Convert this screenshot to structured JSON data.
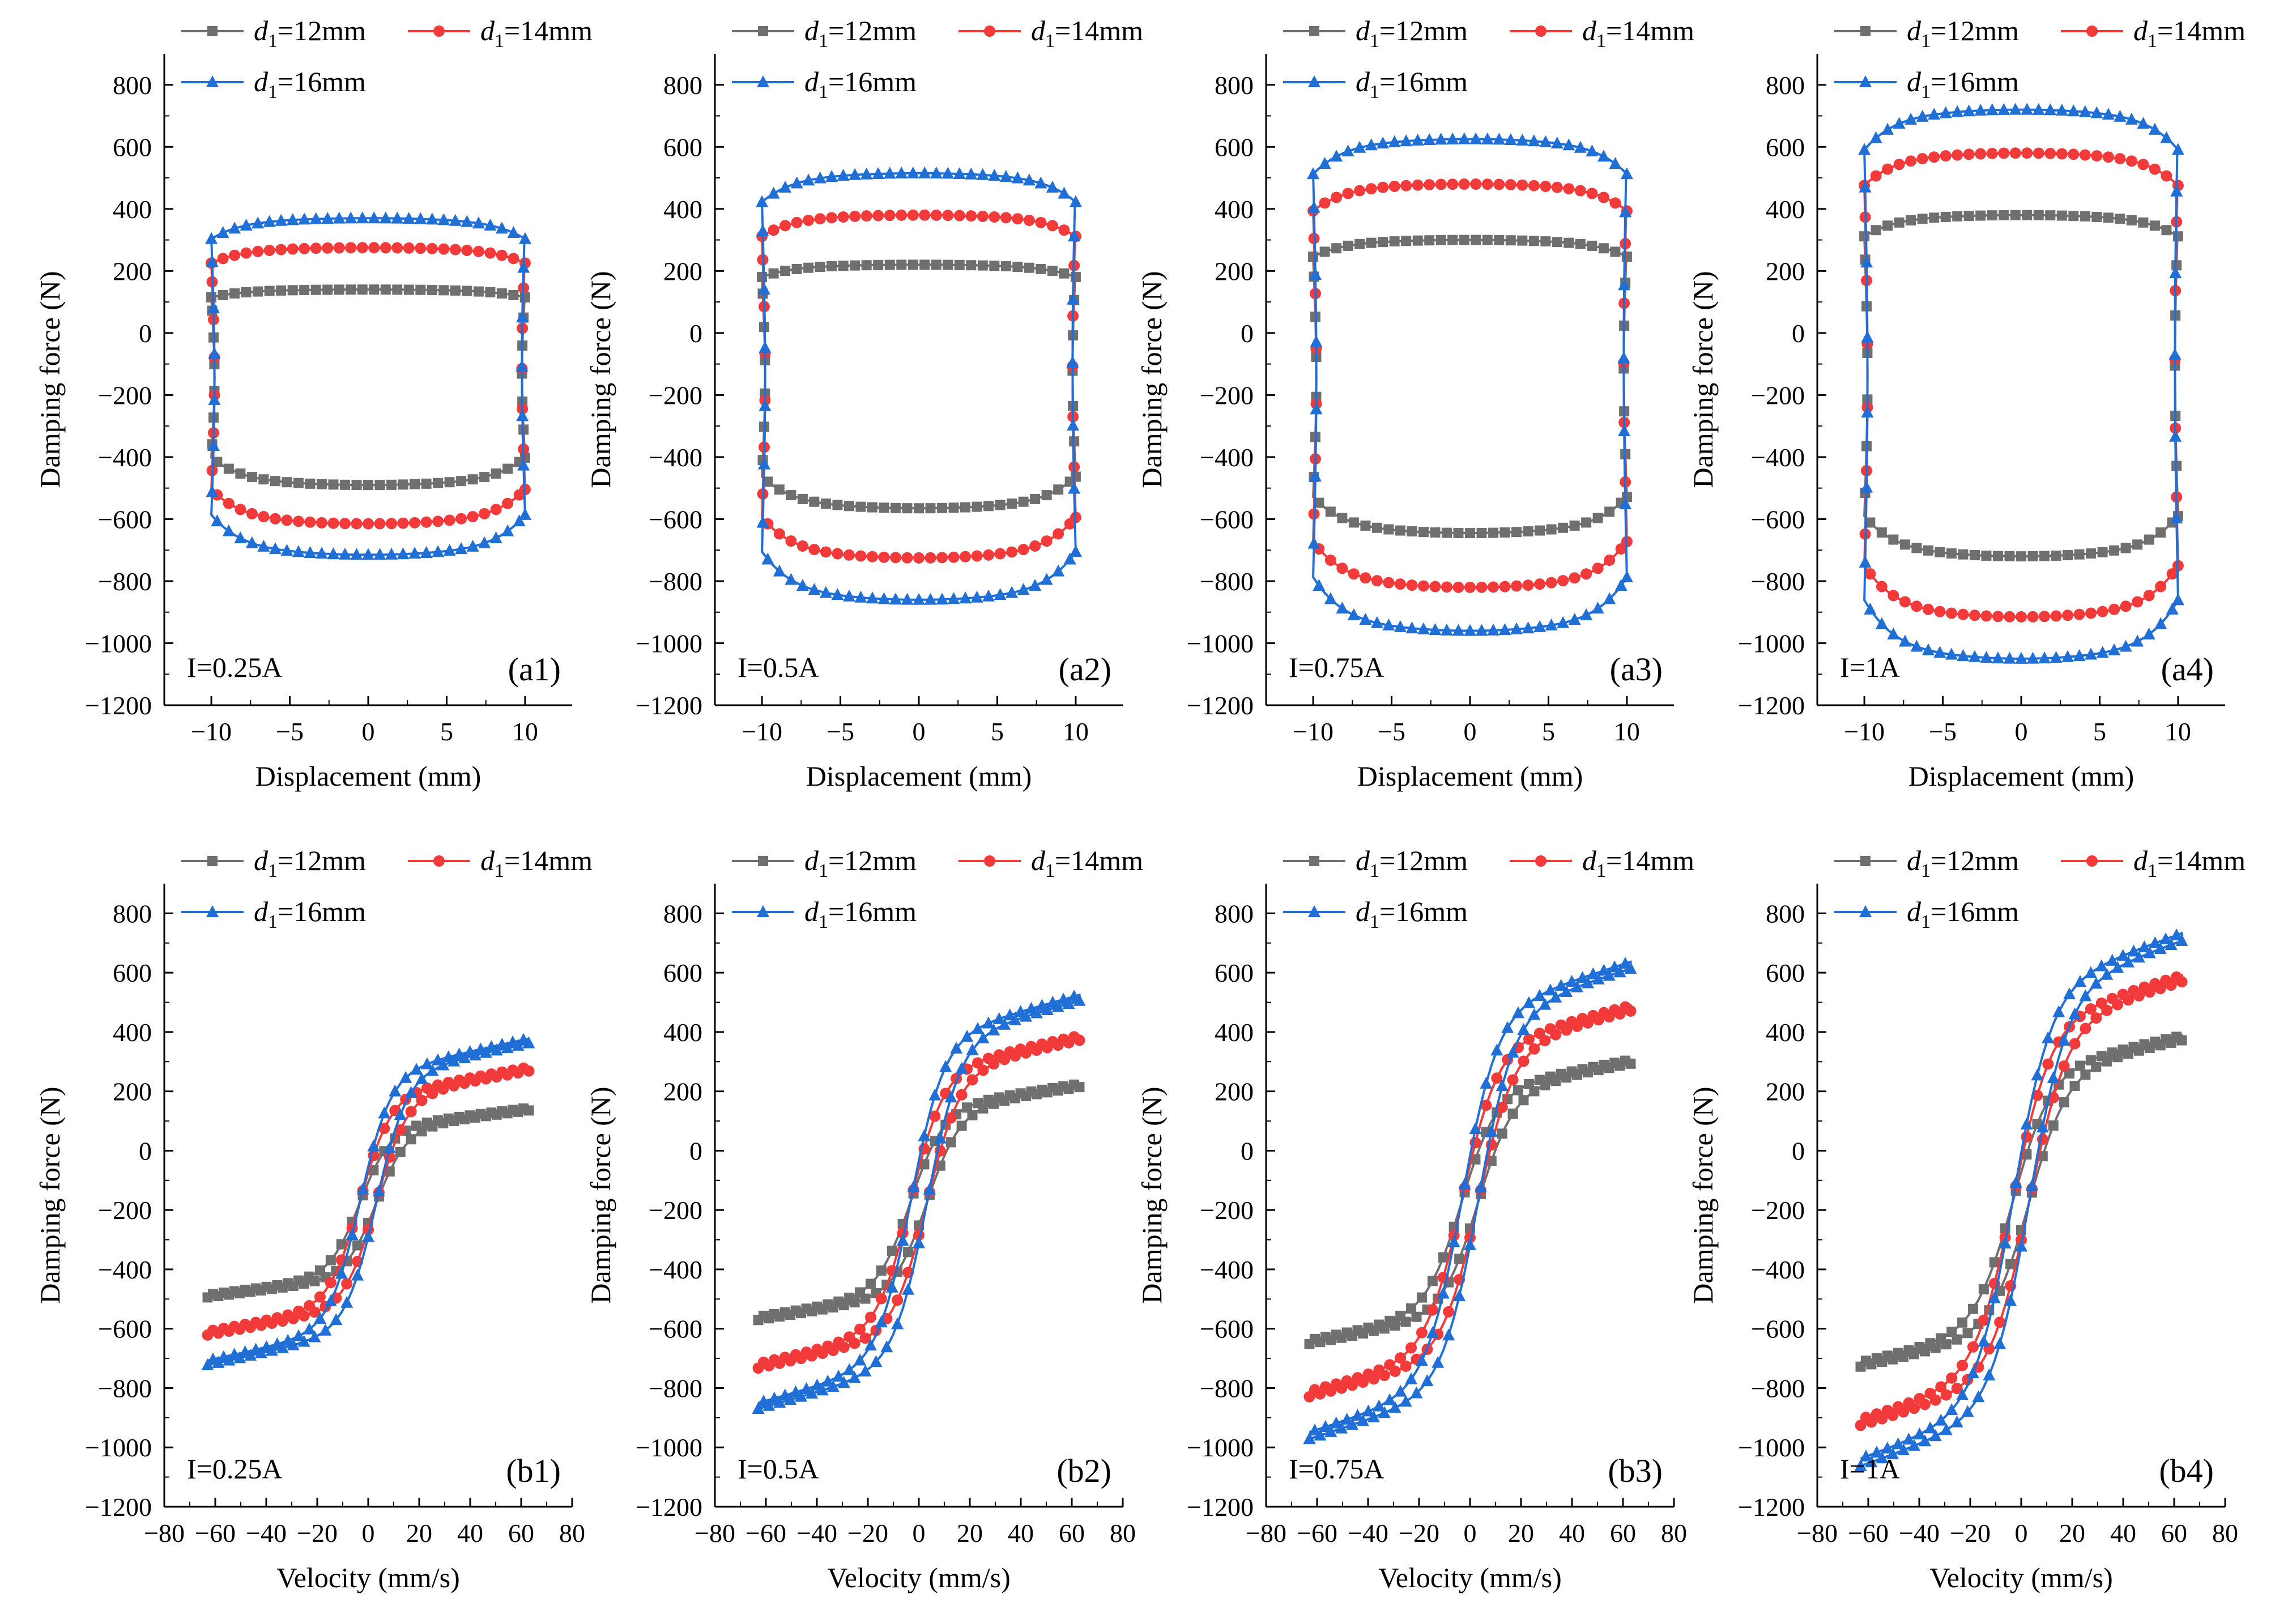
{
  "figure": {
    "panel_rows": [
      "hysteresis_displacement",
      "velocity_force"
    ]
  },
  "legend": {
    "series": [
      {
        "var": "d",
        "sub": "1",
        "value": "=12mm",
        "color": "#6f6f6f",
        "marker": "square"
      },
      {
        "var": "d",
        "sub": "1",
        "value": "=14mm",
        "color": "#f23a3a",
        "marker": "circle"
      },
      {
        "var": "d",
        "sub": "1",
        "value": "=16mm",
        "color": "#1f6fd6",
        "marker": "triangle"
      }
    ]
  },
  "chart_data": [
    {
      "id": "a1",
      "type": "line",
      "panel_label": "(a1)",
      "current_label": "I=0.25A",
      "xlabel": "Displacement (mm)",
      "ylabel": "Damping force (N)",
      "xlim": [
        -13,
        13
      ],
      "ylim": [
        -1200,
        900
      ],
      "xticks": [
        -10,
        -5,
        0,
        5,
        10
      ],
      "yticks": [
        -1200,
        -1000,
        -800,
        -600,
        -400,
        -200,
        0,
        200,
        400,
        600,
        800
      ],
      "xticklabels": [
        "−10",
        "−5",
        "0",
        "5",
        "10"
      ],
      "yticklabels": [
        "−1200",
        "−1000",
        "−800",
        "−600",
        "−400",
        "−200",
        "0",
        "200",
        "400",
        "600",
        "800"
      ],
      "series": [
        {
          "name": "d1=12mm",
          "amplitude_mm": 10,
          "upper_force": 140,
          "lower_force": -490,
          "color": "#6f6f6f",
          "marker": "square"
        },
        {
          "name": "d1=14mm",
          "amplitude_mm": 10,
          "upper_force": 275,
          "lower_force": -615,
          "color": "#f23a3a",
          "marker": "circle"
        },
        {
          "name": "d1=16mm",
          "amplitude_mm": 10,
          "upper_force": 370,
          "lower_force": -715,
          "color": "#1f6fd6",
          "marker": "triangle"
        }
      ]
    },
    {
      "id": "a2",
      "type": "line",
      "panel_label": "(a2)",
      "current_label": "I=0.5A",
      "xlabel": "Displacement (mm)",
      "ylabel": "Damping force (N)",
      "xlim": [
        -13,
        13
      ],
      "ylim": [
        -1200,
        900
      ],
      "xticks": [
        -10,
        -5,
        0,
        5,
        10
      ],
      "yticks": [
        -1200,
        -1000,
        -800,
        -600,
        -400,
        -200,
        0,
        200,
        400,
        600,
        800
      ],
      "xticklabels": [
        "−10",
        "−5",
        "0",
        "5",
        "10"
      ],
      "yticklabels": [
        "−1200",
        "−1000",
        "−800",
        "−600",
        "−400",
        "−200",
        "0",
        "200",
        "400",
        "600",
        "800"
      ],
      "series": [
        {
          "name": "d1=12mm",
          "amplitude_mm": 10,
          "upper_force": 220,
          "lower_force": -565,
          "color": "#6f6f6f",
          "marker": "square"
        },
        {
          "name": "d1=14mm",
          "amplitude_mm": 10,
          "upper_force": 380,
          "lower_force": -725,
          "color": "#f23a3a",
          "marker": "circle"
        },
        {
          "name": "d1=16mm",
          "amplitude_mm": 10,
          "upper_force": 515,
          "lower_force": -860,
          "color": "#1f6fd6",
          "marker": "triangle"
        }
      ]
    },
    {
      "id": "a3",
      "type": "line",
      "panel_label": "(a3)",
      "current_label": "I=0.75A",
      "xlabel": "Displacement (mm)",
      "ylabel": "Damping force (N)",
      "xlim": [
        -13,
        13
      ],
      "ylim": [
        -1200,
        900
      ],
      "xticks": [
        -10,
        -5,
        0,
        5,
        10
      ],
      "yticks": [
        -1200,
        -1000,
        -800,
        -600,
        -400,
        -200,
        0,
        200,
        400,
        600,
        800
      ],
      "xticklabels": [
        "−10",
        "−5",
        "0",
        "5",
        "10"
      ],
      "yticklabels": [
        "−1200",
        "−1000",
        "−800",
        "−600",
        "−400",
        "−200",
        "0",
        "200",
        "400",
        "600",
        "800"
      ],
      "series": [
        {
          "name": "d1=12mm",
          "amplitude_mm": 10,
          "upper_force": 300,
          "lower_force": -645,
          "color": "#6f6f6f",
          "marker": "square"
        },
        {
          "name": "d1=14mm",
          "amplitude_mm": 10,
          "upper_force": 480,
          "lower_force": -820,
          "color": "#f23a3a",
          "marker": "circle"
        },
        {
          "name": "d1=16mm",
          "amplitude_mm": 10,
          "upper_force": 625,
          "lower_force": -960,
          "color": "#1f6fd6",
          "marker": "triangle"
        }
      ]
    },
    {
      "id": "a4",
      "type": "line",
      "panel_label": "(a4)",
      "current_label": "I=1A",
      "xlabel": "Displacement (mm)",
      "ylabel": "Damping force (N)",
      "xlim": [
        -13,
        13
      ],
      "ylim": [
        -1200,
        900
      ],
      "xticks": [
        -10,
        -5,
        0,
        5,
        10
      ],
      "yticks": [
        -1200,
        -1000,
        -800,
        -600,
        -400,
        -200,
        0,
        200,
        400,
        600,
        800
      ],
      "xticklabels": [
        "−10",
        "−5",
        "0",
        "5",
        "10"
      ],
      "yticklabels": [
        "−1200",
        "−1000",
        "−800",
        "−600",
        "−400",
        "−200",
        "0",
        "200",
        "400",
        "600",
        "800"
      ],
      "series": [
        {
          "name": "d1=12mm",
          "amplitude_mm": 10,
          "upper_force": 380,
          "lower_force": -720,
          "color": "#6f6f6f",
          "marker": "square"
        },
        {
          "name": "d1=14mm",
          "amplitude_mm": 10,
          "upper_force": 580,
          "lower_force": -915,
          "color": "#f23a3a",
          "marker": "circle"
        },
        {
          "name": "d1=16mm",
          "amplitude_mm": 10,
          "upper_force": 720,
          "lower_force": -1050,
          "color": "#1f6fd6",
          "marker": "triangle"
        }
      ]
    },
    {
      "id": "b1",
      "type": "line",
      "panel_label": "(b1)",
      "current_label": "I=0.25A",
      "xlabel": "Velocity (mm/s)",
      "ylabel": "Damping force (N)",
      "xlim": [
        -80,
        80
      ],
      "ylim": [
        -1200,
        900
      ],
      "xticks": [
        -80,
        -60,
        -40,
        -20,
        0,
        20,
        40,
        60,
        80
      ],
      "yticks": [
        -1200,
        -1000,
        -800,
        -600,
        -400,
        -200,
        0,
        200,
        400,
        600,
        800
      ],
      "xticklabels": [
        "−80",
        "−60",
        "−40",
        "−20",
        "0",
        "20",
        "40",
        "60",
        "80"
      ],
      "yticklabels": [
        "−1200",
        "−1000",
        "−800",
        "−600",
        "−400",
        "−200",
        "0",
        "200",
        "400",
        "600",
        "800"
      ],
      "series": [
        {
          "name": "d1=12mm",
          "v_max": 63,
          "f_at_vmax": 140,
          "f_at_vmin": -490,
          "knee_velocity": 12,
          "color": "#6f6f6f",
          "marker": "square"
        },
        {
          "name": "d1=14mm",
          "v_max": 63,
          "f_at_vmax": 275,
          "f_at_vmin": -615,
          "knee_velocity": 12,
          "color": "#f23a3a",
          "marker": "circle"
        },
        {
          "name": "d1=16mm",
          "v_max": 63,
          "f_at_vmax": 370,
          "f_at_vmin": -715,
          "knee_velocity": 12,
          "color": "#1f6fd6",
          "marker": "triangle"
        }
      ]
    },
    {
      "id": "b2",
      "type": "line",
      "panel_label": "(b2)",
      "current_label": "I=0.5A",
      "xlabel": "Velocity (mm/s)",
      "ylabel": "Damping force (N)",
      "xlim": [
        -80,
        80
      ],
      "ylim": [
        -1200,
        900
      ],
      "xticks": [
        -80,
        -60,
        -40,
        -20,
        0,
        20,
        40,
        60,
        80
      ],
      "yticks": [
        -1200,
        -1000,
        -800,
        -600,
        -400,
        -200,
        0,
        200,
        400,
        600,
        800
      ],
      "xticklabels": [
        "−80",
        "−60",
        "−40",
        "−20",
        "0",
        "20",
        "40",
        "60",
        "80"
      ],
      "yticklabels": [
        "−1200",
        "−1000",
        "−800",
        "−600",
        "−400",
        "−200",
        "0",
        "200",
        "400",
        "600",
        "800"
      ],
      "series": [
        {
          "name": "d1=12mm",
          "v_max": 63,
          "f_at_vmax": 220,
          "f_at_vmin": -565,
          "knee_velocity": 13,
          "color": "#6f6f6f",
          "marker": "square"
        },
        {
          "name": "d1=14mm",
          "v_max": 63,
          "f_at_vmax": 380,
          "f_at_vmin": -725,
          "knee_velocity": 13,
          "color": "#f23a3a",
          "marker": "circle"
        },
        {
          "name": "d1=16mm",
          "v_max": 63,
          "f_at_vmax": 515,
          "f_at_vmin": -860,
          "knee_velocity": 13,
          "color": "#1f6fd6",
          "marker": "triangle"
        }
      ]
    },
    {
      "id": "b3",
      "type": "line",
      "panel_label": "(b3)",
      "current_label": "I=0.75A",
      "xlabel": "Velocity (mm/s)",
      "ylabel": "Damping force (N)",
      "xlim": [
        -80,
        80
      ],
      "ylim": [
        -1200,
        900
      ],
      "xticks": [
        -80,
        -60,
        -40,
        -20,
        0,
        20,
        40,
        60,
        80
      ],
      "yticks": [
        -1200,
        -1000,
        -800,
        -600,
        -400,
        -200,
        0,
        200,
        400,
        600,
        800
      ],
      "xticklabels": [
        "−80",
        "−60",
        "−40",
        "−20",
        "0",
        "20",
        "40",
        "60",
        "80"
      ],
      "yticklabels": [
        "−1200",
        "−1000",
        "−800",
        "−600",
        "−400",
        "−200",
        "0",
        "200",
        "400",
        "600",
        "800"
      ],
      "series": [
        {
          "name": "d1=12mm",
          "v_max": 63,
          "f_at_vmax": 300,
          "f_at_vmin": -645,
          "knee_velocity": 14,
          "color": "#6f6f6f",
          "marker": "square"
        },
        {
          "name": "d1=14mm",
          "v_max": 63,
          "f_at_vmax": 480,
          "f_at_vmin": -820,
          "knee_velocity": 14,
          "color": "#f23a3a",
          "marker": "circle"
        },
        {
          "name": "d1=16mm",
          "v_max": 63,
          "f_at_vmax": 625,
          "f_at_vmin": -960,
          "knee_velocity": 14,
          "color": "#1f6fd6",
          "marker": "triangle"
        }
      ]
    },
    {
      "id": "b4",
      "type": "line",
      "panel_label": "(b4)",
      "current_label": "I=1A",
      "xlabel": "Velocity (mm/s)",
      "ylabel": "Damping force (N)",
      "xlim": [
        -80,
        80
      ],
      "ylim": [
        -1200,
        900
      ],
      "xticks": [
        -80,
        -60,
        -40,
        -20,
        0,
        20,
        40,
        60,
        80
      ],
      "yticks": [
        -1200,
        -1000,
        -800,
        -600,
        -400,
        -200,
        0,
        200,
        400,
        600,
        800
      ],
      "xticklabels": [
        "−80",
        "−60",
        "−40",
        "−20",
        "0",
        "20",
        "40",
        "60",
        "80"
      ],
      "yticklabels": [
        "−1200",
        "−1000",
        "−800",
        "−600",
        "−400",
        "−200",
        "0",
        "200",
        "400",
        "600",
        "800"
      ],
      "series": [
        {
          "name": "d1=12mm",
          "v_max": 63,
          "f_at_vmax": 380,
          "f_at_vmin": -720,
          "knee_velocity": 15,
          "color": "#6f6f6f",
          "marker": "square"
        },
        {
          "name": "d1=14mm",
          "v_max": 63,
          "f_at_vmax": 580,
          "f_at_vmin": -915,
          "knee_velocity": 15,
          "color": "#f23a3a",
          "marker": "circle"
        },
        {
          "name": "d1=16mm",
          "v_max": 63,
          "f_at_vmax": 720,
          "f_at_vmin": -1050,
          "knee_velocity": 15,
          "color": "#1f6fd6",
          "marker": "triangle"
        }
      ]
    }
  ]
}
